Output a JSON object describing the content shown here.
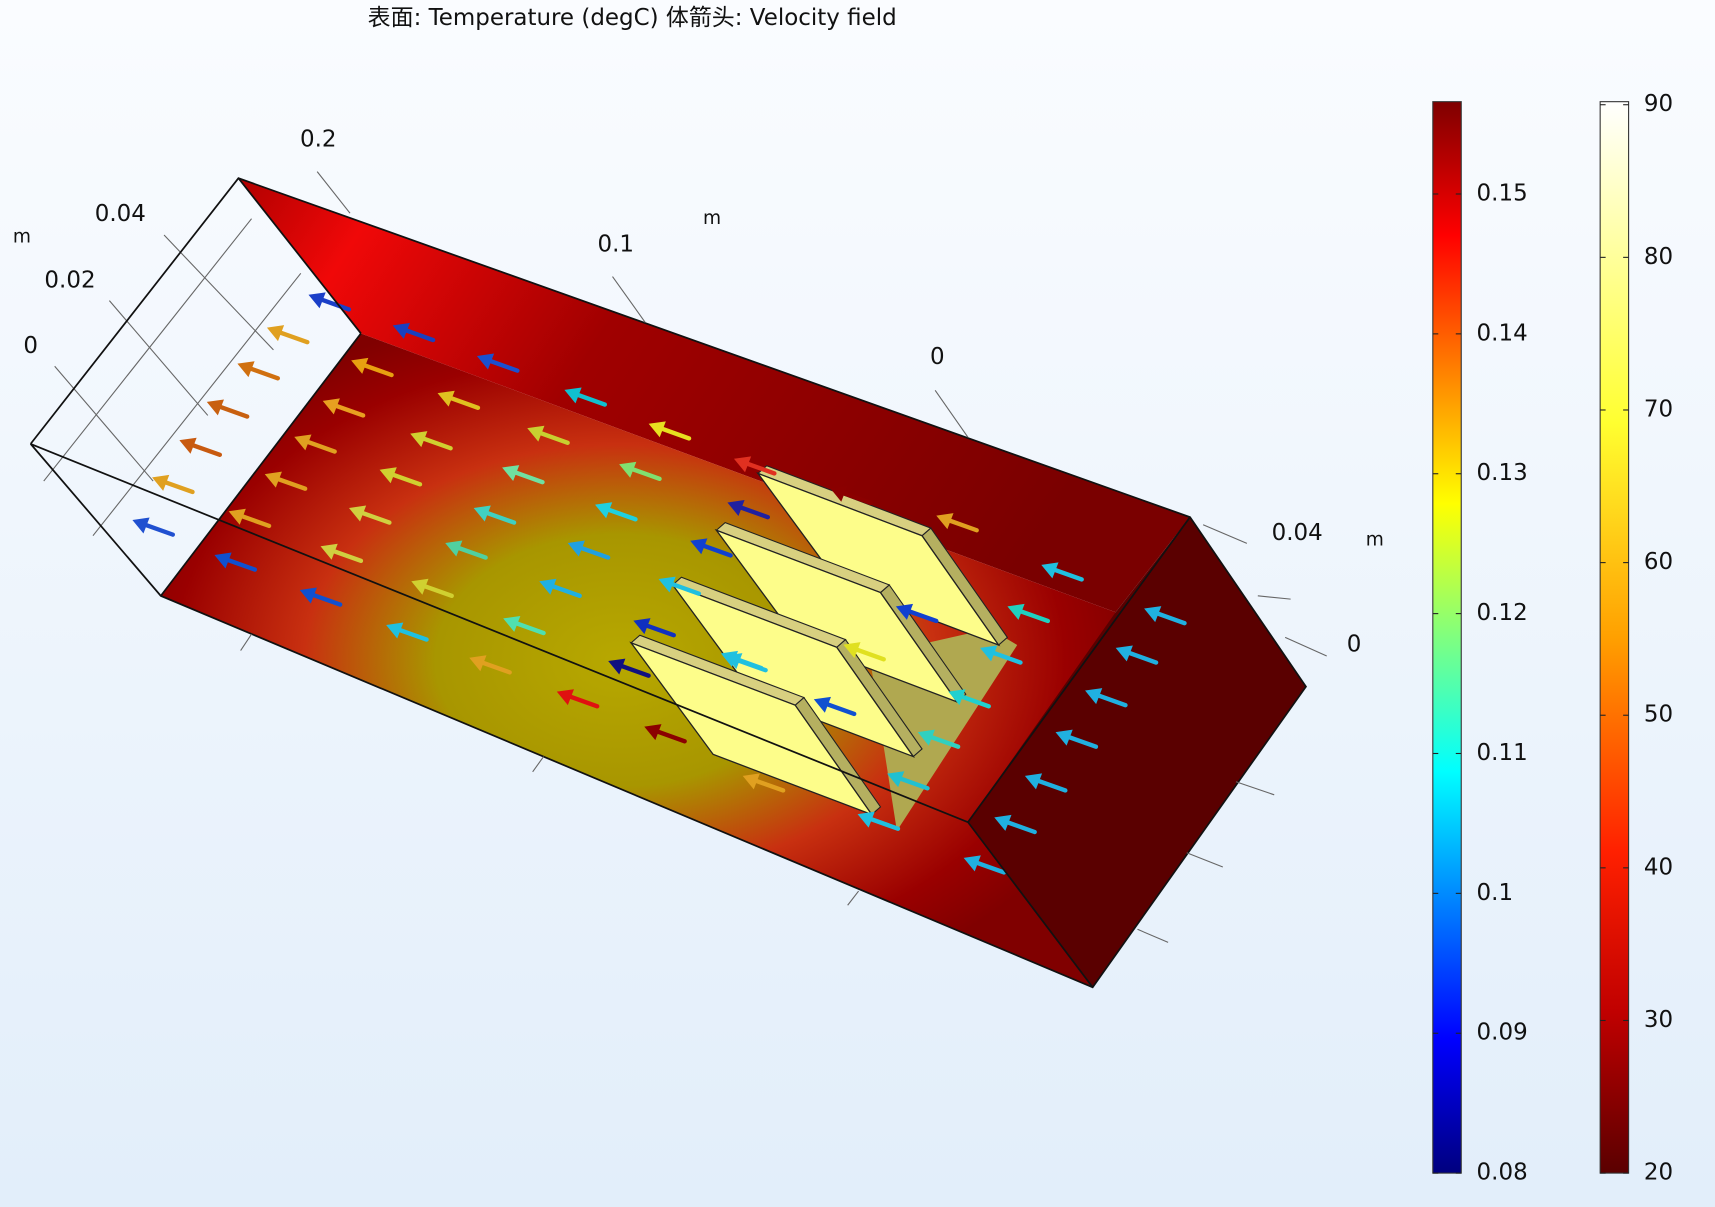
{
  "title": "表面: Temperature (degC)  体箭头: Velocity field",
  "axes": {
    "x": {
      "ticks": [
        "0.2",
        "0.1",
        "0"
      ],
      "unit": "m"
    },
    "y": {
      "ticks": [
        "0",
        "0.02",
        "0.04"
      ],
      "unit": "m"
    },
    "z": {
      "ticks": [
        "0.04",
        "0"
      ],
      "unit": "m"
    }
  },
  "colorbars": [
    {
      "range": [
        0.08,
        0.1566
      ],
      "ticks": [
        0.08,
        0.09,
        0.1,
        0.11,
        0.12,
        0.13,
        0.14,
        0.15
      ]
    },
    {
      "range": [
        20,
        90.2
      ],
      "ticks": [
        20,
        30,
        40,
        50,
        60,
        70,
        80,
        90
      ]
    }
  ]
}
